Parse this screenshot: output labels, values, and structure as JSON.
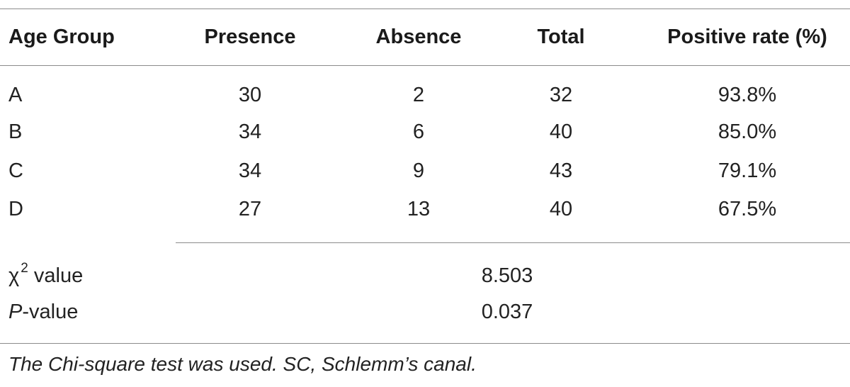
{
  "table": {
    "headers": {
      "age_group": "Age Group",
      "presence": "Presence",
      "absence": "Absence",
      "total": "Total",
      "positive_rate": "Positive rate (%)"
    },
    "rows": [
      {
        "group": "A",
        "presence": "30",
        "absence": "2",
        "total": "32",
        "positive_rate": "93.8%"
      },
      {
        "group": "B",
        "presence": "34",
        "absence": "6",
        "total": "40",
        "positive_rate": "85.0%"
      },
      {
        "group": "C",
        "presence": "34",
        "absence": "9",
        "total": "43",
        "positive_rate": "79.1%"
      },
      {
        "group": "D",
        "presence": "27",
        "absence": "13",
        "total": "40",
        "positive_rate": "67.5%"
      }
    ],
    "stats": {
      "chi_square": {
        "symbol": "χ",
        "superscript": "2",
        "label": " value",
        "value": "8.503"
      },
      "p_value": {
        "italic_part": "P",
        "label": "-value",
        "value": "0.037"
      }
    },
    "footnote": "The Chi-square test was used. SC, Schlemm’s canal."
  }
}
